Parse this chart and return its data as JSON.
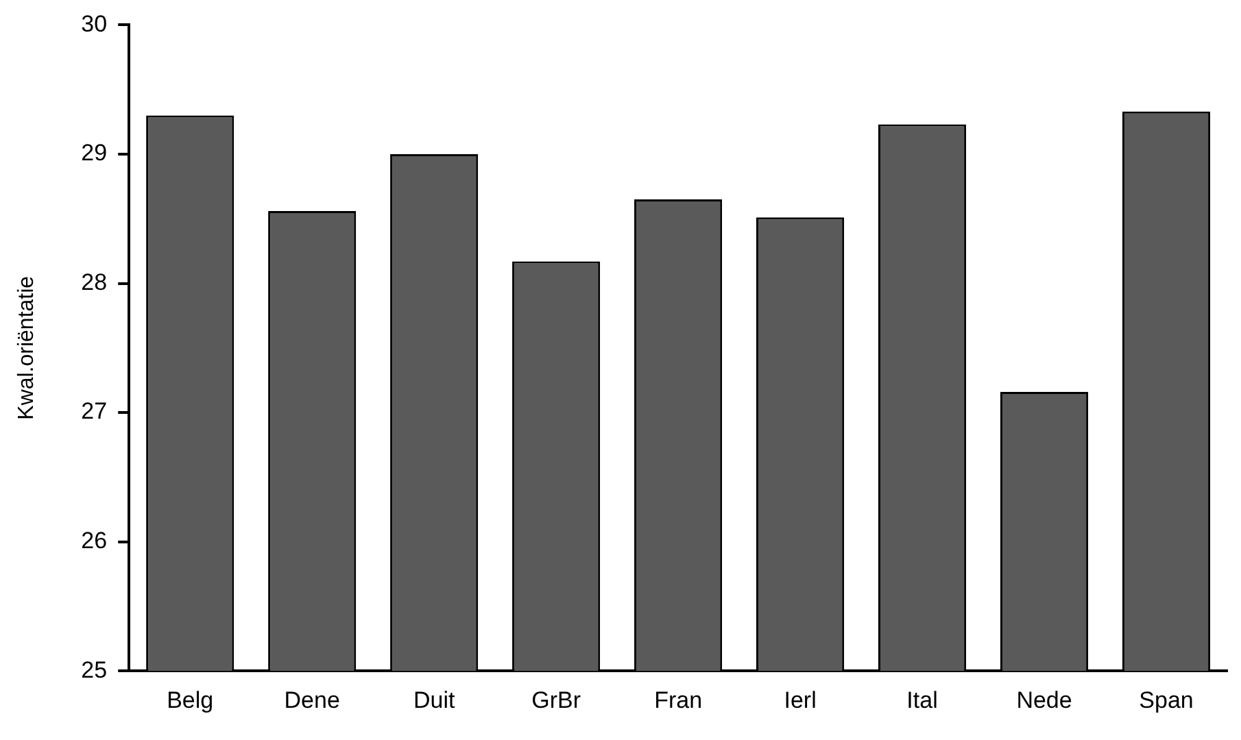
{
  "chart_data": {
    "type": "bar",
    "ylabel": "Kwal.oriëntatie",
    "categories": [
      "Belg",
      "Dene",
      "Duit",
      "GrBr",
      "Fran",
      "Ierl",
      "Ital",
      "Nede",
      "Span"
    ],
    "values": [
      29.3,
      28.56,
      29.0,
      28.17,
      28.65,
      28.51,
      29.23,
      27.16,
      29.33
    ],
    "color": "#5a5a5a",
    "ylim": [
      25,
      30
    ],
    "yticks": [
      25,
      26,
      27,
      28,
      29,
      30
    ],
    "grid": false,
    "legend": false
  }
}
